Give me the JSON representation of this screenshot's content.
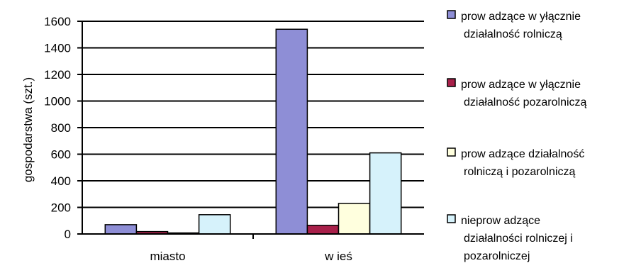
{
  "chart_data": {
    "type": "bar",
    "title": "",
    "xlabel": "",
    "ylabel": "gospodarstwa (szt.)",
    "ylim": [
      0,
      1600
    ],
    "yticks": [
      0,
      200,
      400,
      600,
      800,
      1000,
      1200,
      1400,
      1600
    ],
    "grid": true,
    "legend_position": "right",
    "categories": [
      "miasto",
      "w ieś"
    ],
    "series": [
      {
        "name": "prow adzące w yłącznie działalność rolniczą",
        "legend_lines": [
          "prow adzące w yłącznie",
          "działalność rolniczą"
        ],
        "color": "#8e8ed6",
        "values": [
          70,
          1540
        ]
      },
      {
        "name": "prow adzące w yłącznie działalność pozarolniczą",
        "legend_lines": [
          "prow adzące w yłącznie",
          "działalność pozarolniczą"
        ],
        "color": "#a8204a",
        "values": [
          18,
          65
        ]
      },
      {
        "name": "prow adzące działalność rolniczą i pozarolniczą",
        "legend_lines": [
          "prow adzące działalność",
          "rolniczą i pozarolniczą"
        ],
        "color": "#ffffde",
        "values": [
          8,
          230
        ]
      },
      {
        "name": "nieprow adzące działalności rolniczej i pozarolniczej",
        "legend_lines": [
          "nieprow adzące",
          "działalności rolniczej i",
          "pozarolniczej"
        ],
        "color": "#d6f2fb",
        "values": [
          145,
          610
        ]
      }
    ]
  }
}
